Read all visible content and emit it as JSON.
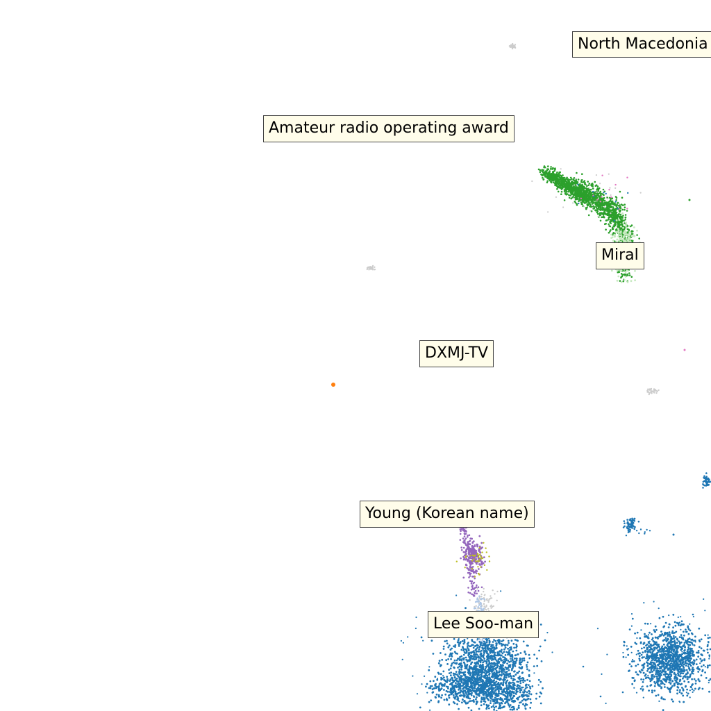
{
  "map": {
    "colors": {
      "background": "#ffffff",
      "label_fill": "#fffdea",
      "label_border": "#444444",
      "blue": "#1f77b4",
      "green": "#2ca02c",
      "light_green": "#c7e9c0",
      "purple": "#9467bd",
      "olive": "#bcbd22",
      "pink": "#e377c2",
      "orange": "#ff7f0e",
      "gray": "#cccccc",
      "light_blue": "#aec7e8"
    },
    "labels": {
      "north_macedonia": "North Macedonia",
      "amateur_radio": "Amateur radio operating award",
      "miral": "Miral",
      "dxmj": "DXMJ-TV",
      "young": "Young (Korean name)",
      "lee": "Lee Soo-man"
    }
  }
}
